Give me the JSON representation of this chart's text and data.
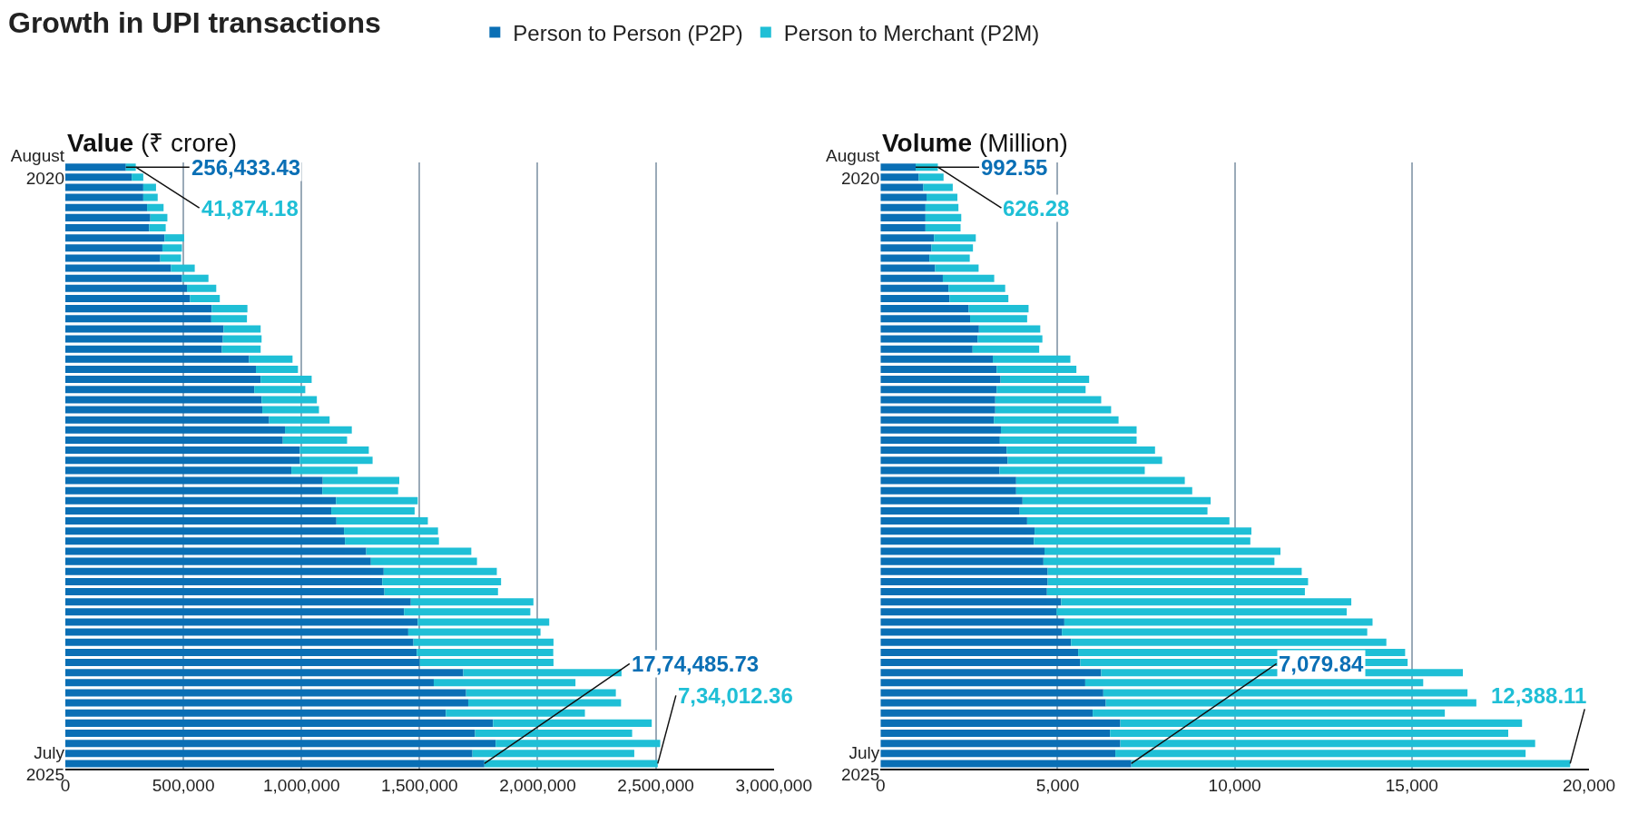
{
  "chart_data": [
    {
      "type": "bar",
      "orientation": "horizontal",
      "stacked": true,
      "title": "Growth in UPI transactions",
      "subtitle": "Value (₹ crore)",
      "legend": "top",
      "grid": "x",
      "categories": [
        "August\n2020",
        null,
        null,
        null,
        null,
        null,
        null,
        null,
        null,
        null,
        null,
        null,
        null,
        null,
        null,
        null,
        null,
        null,
        null,
        null,
        null,
        null,
        null,
        null,
        null,
        null,
        null,
        null,
        null,
        null,
        null,
        null,
        null,
        null,
        null,
        null,
        null,
        null,
        null,
        null,
        null,
        null,
        null,
        null,
        null,
        null,
        null,
        null,
        null,
        null,
        null,
        null,
        null,
        null,
        null,
        null,
        null,
        null,
        null,
        "July\n2025"
      ],
      "xlim": [
        0,
        3000000
      ],
      "xticks": [
        {
          "value": 0,
          "label": "0"
        },
        {
          "value": 500000,
          "label": "500,000"
        },
        {
          "value": 1000000,
          "label": "1,000,000"
        },
        {
          "value": 1500000,
          "label": "1,500,000"
        },
        {
          "value": 2000000,
          "label": "2,000,000"
        },
        {
          "value": 2500000,
          "label": "2,500,000"
        },
        {
          "value": 3000000,
          "label": "3,000,000"
        }
      ],
      "series": [
        {
          "name": "Person to Person (P2P)",
          "color": "#0a6fb5",
          "values": [
            256433.43,
            281000,
            330000,
            330000,
            346000,
            360000,
            355000,
            420000,
            411000,
            402000,
            447000,
            494000,
            515000,
            528000,
            620000,
            618000,
            670000,
            667000,
            663000,
            778000,
            807000,
            827000,
            800000,
            831000,
            834000,
            863000,
            930000,
            921000,
            993000,
            993000,
            957000,
            1090000,
            1088000,
            1146000,
            1126000,
            1148000,
            1180000,
            1184000,
            1274000,
            1294000,
            1348000,
            1342000,
            1351000,
            1463000,
            1434000,
            1492000,
            1452000,
            1474000,
            1488000,
            1501000,
            1685000,
            1560000,
            1697000,
            1706000,
            1611000,
            1811000,
            1735000,
            1822000,
            1724000,
            1774485.73
          ],
          "value_labels": [
            "256,433.43",
            null,
            null,
            null,
            null,
            null,
            null,
            null,
            null,
            null,
            null,
            null,
            null,
            null,
            null,
            null,
            null,
            null,
            null,
            null,
            null,
            null,
            null,
            null,
            null,
            null,
            null,
            null,
            null,
            null,
            null,
            null,
            null,
            null,
            null,
            null,
            null,
            null,
            null,
            null,
            null,
            null,
            null,
            null,
            null,
            null,
            null,
            null,
            null,
            null,
            null,
            null,
            null,
            null,
            null,
            null,
            null,
            null,
            null,
            "17,74,485.73"
          ]
        },
        {
          "name": "Person to Merchant (P2M)",
          "color": "#1fbfd6",
          "values": [
            41874.18,
            49000,
            54000,
            61000,
            70000,
            72000,
            70000,
            83000,
            83000,
            88000,
            101000,
            112000,
            124000,
            126000,
            151000,
            151000,
            157000,
            164000,
            164000,
            184000,
            178000,
            216000,
            216000,
            234000,
            240000,
            256000,
            283000,
            272000,
            292000,
            308000,
            281000,
            324000,
            321000,
            346000,
            353000,
            387000,
            398000,
            398000,
            445000,
            449000,
            479000,
            503000,
            481000,
            519000,
            535000,
            557000,
            560000,
            593000,
            578000,
            566000,
            670000,
            600000,
            634000,
            647000,
            589000,
            672000,
            665000,
            697000,
            685000,
            734012.36
          ],
          "value_labels": [
            "41,874.18",
            null,
            null,
            null,
            null,
            null,
            null,
            null,
            null,
            null,
            null,
            null,
            null,
            null,
            null,
            null,
            null,
            null,
            null,
            null,
            null,
            null,
            null,
            null,
            null,
            null,
            null,
            null,
            null,
            null,
            null,
            null,
            null,
            null,
            null,
            null,
            null,
            null,
            null,
            null,
            null,
            null,
            null,
            null,
            null,
            null,
            null,
            null,
            null,
            null,
            null,
            null,
            null,
            null,
            null,
            null,
            null,
            null,
            null,
            "7,34,012.36"
          ]
        }
      ]
    },
    {
      "type": "bar",
      "orientation": "horizontal",
      "stacked": true,
      "subtitle": "Volume (Million)",
      "grid": "x",
      "categories": [
        "August\n2020",
        null,
        null,
        null,
        null,
        null,
        null,
        null,
        null,
        null,
        null,
        null,
        null,
        null,
        null,
        null,
        null,
        null,
        null,
        null,
        null,
        null,
        null,
        null,
        null,
        null,
        null,
        null,
        null,
        null,
        null,
        null,
        null,
        null,
        null,
        null,
        null,
        null,
        null,
        null,
        null,
        null,
        null,
        null,
        null,
        null,
        null,
        null,
        null,
        null,
        null,
        null,
        null,
        null,
        null,
        null,
        null,
        null,
        null,
        "July\n2025"
      ],
      "xlim": [
        0,
        20000
      ],
      "xticks": [
        {
          "value": 0,
          "label": "0"
        },
        {
          "value": 5000,
          "label": "5,000"
        },
        {
          "value": 10000,
          "label": "10,000"
        },
        {
          "value": 15000,
          "label": "15,000"
        },
        {
          "value": 20000,
          "label": "20,000"
        }
      ],
      "series": [
        {
          "color": "#0a6fb5",
          "values": [
            992.55,
            1080,
            1210,
            1300,
            1270,
            1270,
            1270,
            1510,
            1440,
            1380,
            1540,
            1760,
            1920,
            1950,
            2490,
            2530,
            2780,
            2740,
            2600,
            3170,
            3280,
            3390,
            3280,
            3240,
            3240,
            3200,
            3400,
            3370,
            3560,
            3590,
            3360,
            3830,
            3830,
            4010,
            3930,
            4140,
            4350,
            4330,
            4630,
            4600,
            4720,
            4720,
            4700,
            5100,
            4970,
            5190,
            5120,
            5380,
            5580,
            5640,
            6230,
            5780,
            6290,
            6360,
            5990,
            6770,
            6480,
            6770,
            6630,
            7079.84
          ],
          "value_labels": [
            "992.55",
            null,
            null,
            null,
            null,
            null,
            null,
            null,
            null,
            null,
            null,
            null,
            null,
            null,
            null,
            null,
            null,
            null,
            null,
            null,
            null,
            null,
            null,
            null,
            null,
            null,
            null,
            null,
            null,
            null,
            null,
            null,
            null,
            null,
            null,
            null,
            null,
            null,
            null,
            null,
            null,
            null,
            null,
            null,
            null,
            null,
            null,
            null,
            null,
            null,
            null,
            null,
            null,
            null,
            null,
            null,
            null,
            null,
            null,
            "7,079.84"
          ]
        },
        {
          "color": "#1fbfd6",
          "values": [
            626.28,
            700,
            830,
            870,
            930,
            1010,
            990,
            1180,
            1170,
            1140,
            1230,
            1450,
            1600,
            1660,
            1690,
            1610,
            1730,
            1830,
            1880,
            2190,
            2250,
            2500,
            2510,
            2990,
            3270,
            3520,
            3830,
            3860,
            4190,
            4360,
            4100,
            4760,
            4970,
            5310,
            5300,
            5710,
            6120,
            6110,
            6660,
            6520,
            7170,
            7350,
            7280,
            8190,
            8190,
            8700,
            8620,
            8900,
            9230,
            9240,
            10210,
            9540,
            10280,
            10460,
            9940,
            11340,
            11240,
            11710,
            11580,
            12388.11
          ],
          "value_labels": [
            "626.28",
            null,
            null,
            null,
            null,
            null,
            null,
            null,
            null,
            null,
            null,
            null,
            null,
            null,
            null,
            null,
            null,
            null,
            null,
            null,
            null,
            null,
            null,
            null,
            null,
            null,
            null,
            null,
            null,
            null,
            null,
            null,
            null,
            null,
            null,
            null,
            null,
            null,
            null,
            null,
            null,
            null,
            null,
            null,
            null,
            null,
            null,
            null,
            null,
            null,
            null,
            null,
            null,
            null,
            null,
            null,
            null,
            null,
            null,
            "12,388.11"
          ]
        }
      ]
    }
  ]
}
